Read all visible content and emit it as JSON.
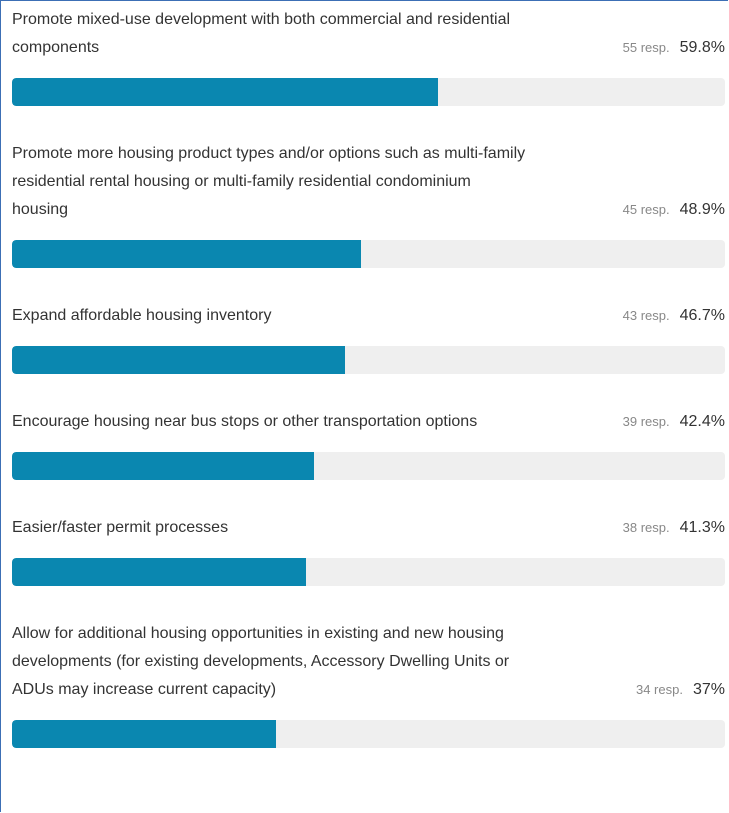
{
  "chart_data": {
    "type": "bar",
    "orientation": "horizontal",
    "categories": [
      "Promote mixed-use development with both commercial and residential components",
      "Promote more housing product types and/or options such as multi-family residential rental housing or multi-family residential condominium housing",
      "Expand affordable housing inventory",
      "Encourage housing near bus stops or other transportation options",
      "Easier/faster permit processes",
      "Allow for additional housing opportunities in existing and new housing developments (for existing developments, Accessory Dwelling Units or ADUs may increase current capacity)"
    ],
    "values": [
      59.8,
      48.9,
      46.7,
      42.4,
      41.3,
      37
    ],
    "value_labels": [
      "59.8%",
      "48.9%",
      "46.7%",
      "42.4%",
      "41.3%",
      "37%"
    ],
    "responses": [
      "55 resp.",
      "45 resp.",
      "43 resp.",
      "39 resp.",
      "38 resp.",
      "34 resp."
    ],
    "xlim": [
      0,
      100
    ],
    "color": "#0a87b0",
    "track_color": "#efefef"
  }
}
